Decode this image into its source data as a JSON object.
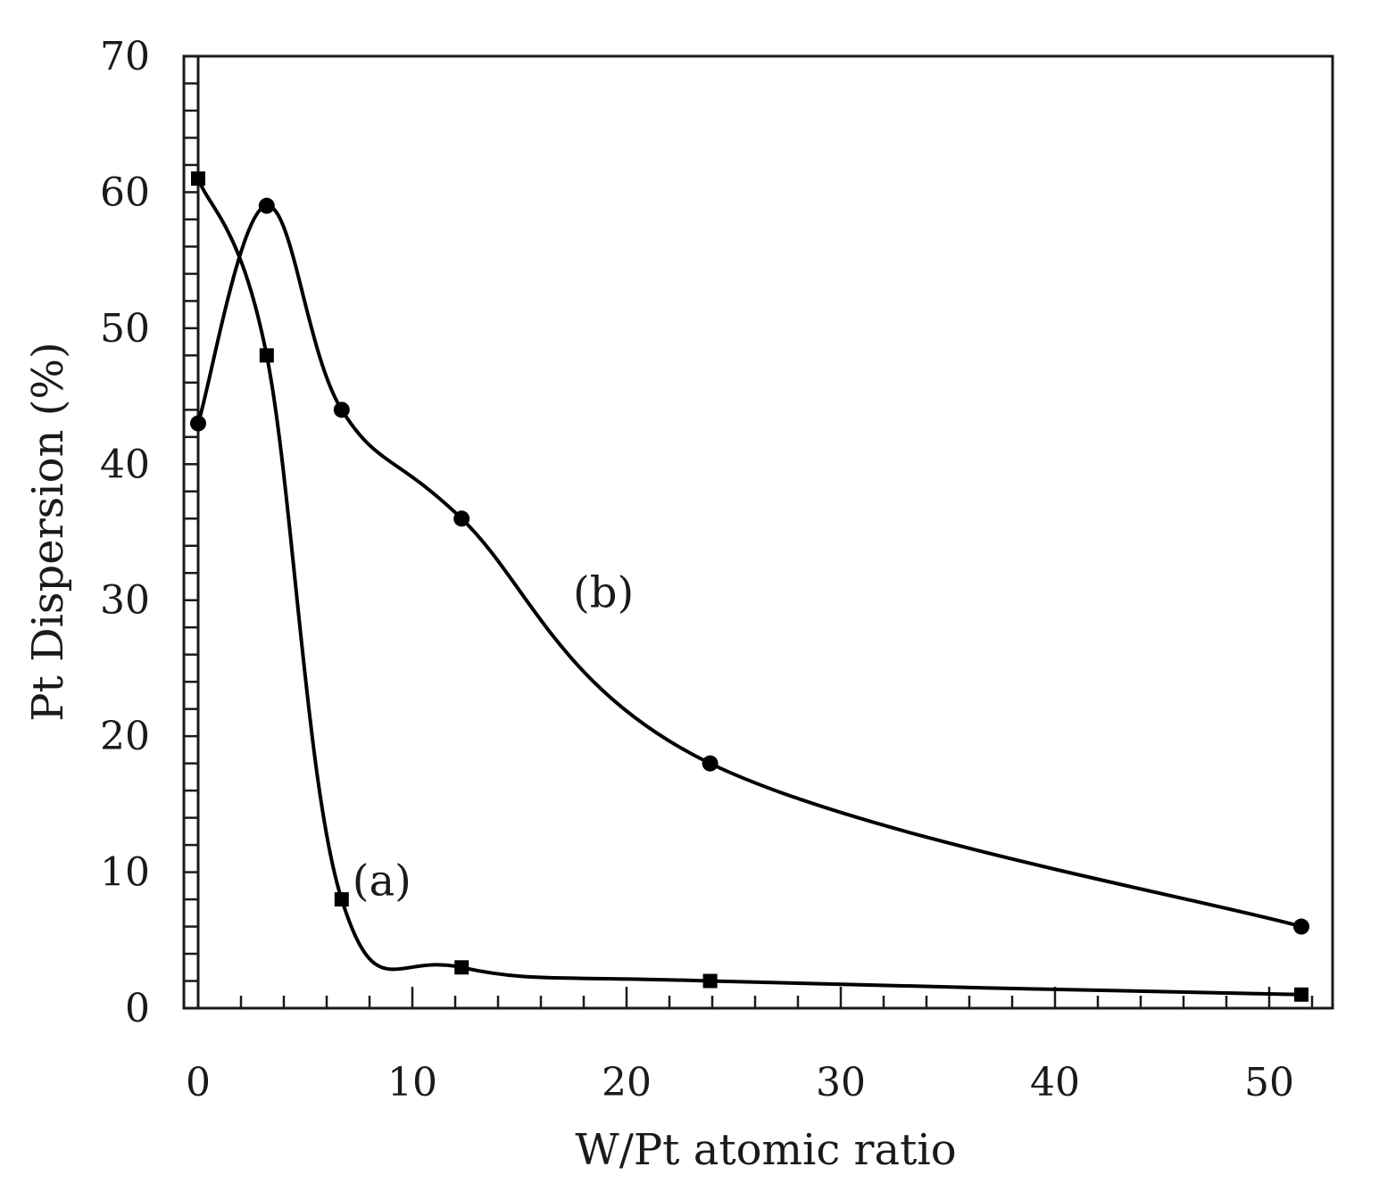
{
  "chart_data": {
    "type": "line",
    "title": "",
    "xlabel": "W/Pt atomic ratio",
    "ylabel": "Pt Dispersion (%)",
    "xlim": [
      0,
      53
    ],
    "ylim": [
      0,
      70
    ],
    "x_major_ticks": [
      0,
      10,
      20,
      30,
      40,
      50
    ],
    "x_tick_labels": [
      "0",
      "10",
      "20",
      "30",
      "40",
      "50"
    ],
    "x_minor_step": 2,
    "y_major_ticks": [
      0,
      10,
      20,
      30,
      40,
      50,
      60,
      70
    ],
    "y_tick_labels": [
      "0",
      "10",
      "20",
      "30",
      "40",
      "50",
      "60",
      "70"
    ],
    "y_minor_step": 2,
    "grid": false,
    "series": [
      {
        "name": "(a)",
        "marker": "square",
        "x": [
          0,
          3.2,
          6.7,
          12.3,
          23.9,
          51.5
        ],
        "y": [
          61,
          48,
          8,
          3,
          2,
          1
        ],
        "label_at": [
          7.2,
          8.3
        ]
      },
      {
        "name": "(b)",
        "marker": "circle",
        "x": [
          0,
          3.2,
          6.7,
          12.3,
          23.9,
          51.5
        ],
        "y": [
          43,
          59,
          44,
          36,
          18,
          6
        ],
        "label_at": [
          17.5,
          29.5
        ]
      }
    ]
  }
}
